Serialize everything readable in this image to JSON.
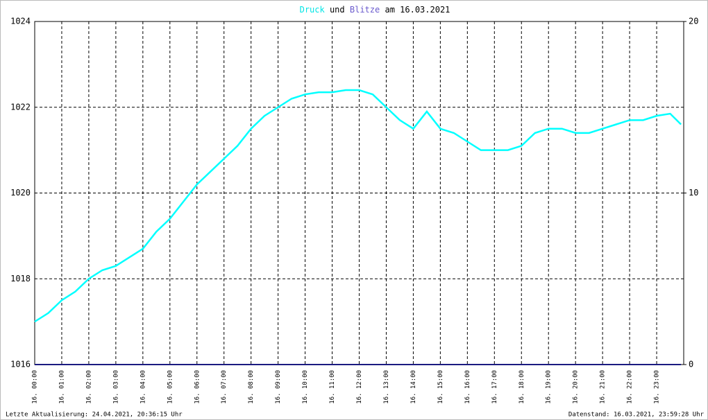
{
  "chart_data": {
    "type": "line",
    "title_middle": "und",
    "title_suffix": "am 16.03.2021",
    "footer_left": "Letzte Aktualisierung: 24.04.2021, 20:36:15 Uhr",
    "footer_right": "Datenstand: 16.03.2021, 23:59:28 Uhr",
    "x": [
      0,
      0.5,
      1,
      1.5,
      2,
      2.5,
      3,
      3.5,
      4,
      4.5,
      5,
      5.5,
      6,
      6.5,
      7,
      7.5,
      8,
      8.5,
      9,
      9.5,
      10,
      10.5,
      11,
      11.5,
      12,
      12.5,
      13,
      13.5,
      14,
      14.5,
      15,
      15.5,
      16,
      16.5,
      17,
      17.5,
      18,
      18.5,
      19,
      19.5,
      20,
      20.5,
      21,
      21.5,
      22,
      22.5,
      23,
      23.5,
      23.9
    ],
    "xlim": [
      0,
      24
    ],
    "xticks": [
      {
        "value": 0,
        "label": "16. 00:00"
      },
      {
        "value": 1,
        "label": "16. 01:00"
      },
      {
        "value": 2,
        "label": "16. 02:00"
      },
      {
        "value": 3,
        "label": "16. 03:00"
      },
      {
        "value": 4,
        "label": "16. 04:00"
      },
      {
        "value": 5,
        "label": "16. 05:00"
      },
      {
        "value": 6,
        "label": "16. 06:00"
      },
      {
        "value": 7,
        "label": "16. 07:00"
      },
      {
        "value": 8,
        "label": "16. 08:00"
      },
      {
        "value": 9,
        "label": "16. 09:00"
      },
      {
        "value": 10,
        "label": "16. 10:00"
      },
      {
        "value": 11,
        "label": "16. 11:00"
      },
      {
        "value": 12,
        "label": "16. 12:00"
      },
      {
        "value": 13,
        "label": "16. 13:00"
      },
      {
        "value": 14,
        "label": "16. 14:00"
      },
      {
        "value": 15,
        "label": "16. 15:00"
      },
      {
        "value": 16,
        "label": "16. 16:00"
      },
      {
        "value": 17,
        "label": "16. 17:00"
      },
      {
        "value": 18,
        "label": "16. 18:00"
      },
      {
        "value": 19,
        "label": "16. 19:00"
      },
      {
        "value": 20,
        "label": "16. 20:00"
      },
      {
        "value": 21,
        "label": "16. 21:00"
      },
      {
        "value": 22,
        "label": "16. 22:00"
      },
      {
        "value": 23,
        "label": "16. 23:00"
      }
    ],
    "ylim": [
      1016,
      1024
    ],
    "yticks": [
      1016,
      1018,
      1020,
      1022,
      1024
    ],
    "y2lim": [
      0,
      20
    ],
    "y2ticks": [
      0,
      10,
      20
    ],
    "grid": true,
    "series": [
      {
        "name": "Druck",
        "color": "#00ffff",
        "values": [
          1017.0,
          1017.2,
          1017.5,
          1017.7,
          1018.0,
          1018.2,
          1018.3,
          1018.5,
          1018.7,
          1019.1,
          1019.4,
          1019.8,
          1020.2,
          1020.5,
          1020.8,
          1021.1,
          1021.5,
          1021.8,
          1022.0,
          1022.2,
          1022.3,
          1022.35,
          1022.35,
          1022.4,
          1022.4,
          1022.3,
          1022.0,
          1021.7,
          1021.5,
          1021.9,
          1021.5,
          1021.4,
          1021.2,
          1021.0,
          1021.0,
          1021.0,
          1021.1,
          1021.4,
          1021.5,
          1021.5,
          1021.4,
          1021.4,
          1021.5,
          1021.6,
          1021.7,
          1021.7,
          1021.8,
          1021.85,
          1021.6
        ]
      },
      {
        "name": "Blitze",
        "color": "#1a1a80",
        "axis": "y2",
        "values": [
          0,
          0,
          0,
          0,
          0,
          0,
          0,
          0,
          0,
          0,
          0,
          0,
          0,
          0,
          0,
          0,
          0,
          0,
          0,
          0,
          0,
          0,
          0,
          0,
          0,
          0,
          0,
          0,
          0,
          0,
          0,
          0,
          0,
          0,
          0,
          0,
          0,
          0,
          0,
          0,
          0,
          0,
          0,
          0,
          0,
          0,
          0,
          0,
          0
        ]
      }
    ]
  }
}
